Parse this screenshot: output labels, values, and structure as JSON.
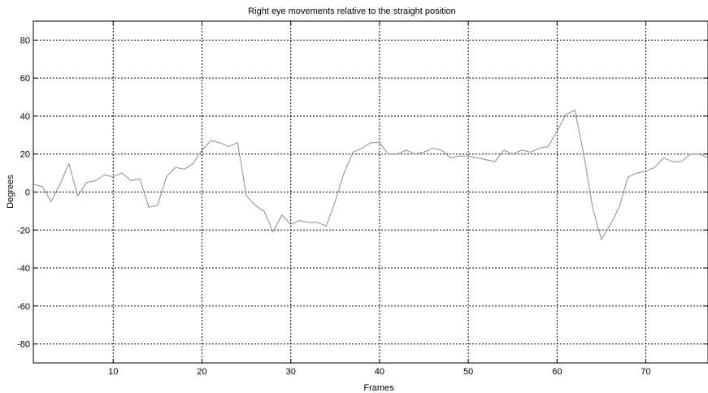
{
  "chart_data": {
    "type": "line",
    "title": "Right eye movements relative to the straight position",
    "xlabel": "Frames",
    "ylabel": "Degrees",
    "xlim": [
      1,
      77
    ],
    "ylim": [
      -90,
      90
    ],
    "xticks": [
      10,
      20,
      30,
      40,
      50,
      60,
      70
    ],
    "yticks": [
      -80,
      -60,
      -40,
      -20,
      0,
      20,
      40,
      60,
      80
    ],
    "grid": true,
    "line_color": "#8c8c8c",
    "series": [
      {
        "x": [
          1,
          2,
          3,
          4,
          5,
          6,
          7,
          8,
          9,
          10,
          11,
          12,
          13,
          14,
          15,
          16,
          17,
          18,
          19,
          20,
          21,
          22,
          23,
          24,
          25,
          26,
          27,
          28,
          29,
          30,
          31,
          32,
          33,
          34,
          35,
          36,
          37,
          38,
          39,
          40,
          41,
          42,
          43,
          44,
          45,
          46,
          47,
          48,
          49,
          50,
          51,
          52,
          53,
          54,
          55,
          56,
          57,
          58,
          59,
          60,
          61,
          62,
          63,
          64,
          65,
          66,
          67,
          68,
          69,
          70,
          71,
          72,
          73,
          74,
          75,
          76,
          77
        ],
        "values": [
          4,
          3,
          -5,
          4,
          15,
          -2,
          5,
          6,
          9,
          8,
          10,
          6,
          7,
          -8,
          -7,
          8,
          13,
          12,
          15,
          22,
          27,
          26,
          24,
          26,
          -2,
          -7,
          -10,
          -21,
          -12,
          -17,
          -15,
          -16,
          -16,
          -18,
          -5,
          10,
          21,
          23,
          26,
          26,
          20,
          20,
          22,
          20,
          21,
          23,
          22,
          18,
          19,
          19,
          18,
          17,
          16,
          22,
          20,
          22,
          21,
          23,
          24,
          32,
          41,
          43,
          20,
          -8,
          -25,
          -17,
          -8,
          8,
          10,
          11,
          13,
          18,
          16,
          16,
          20,
          20,
          18
        ]
      }
    ]
  }
}
